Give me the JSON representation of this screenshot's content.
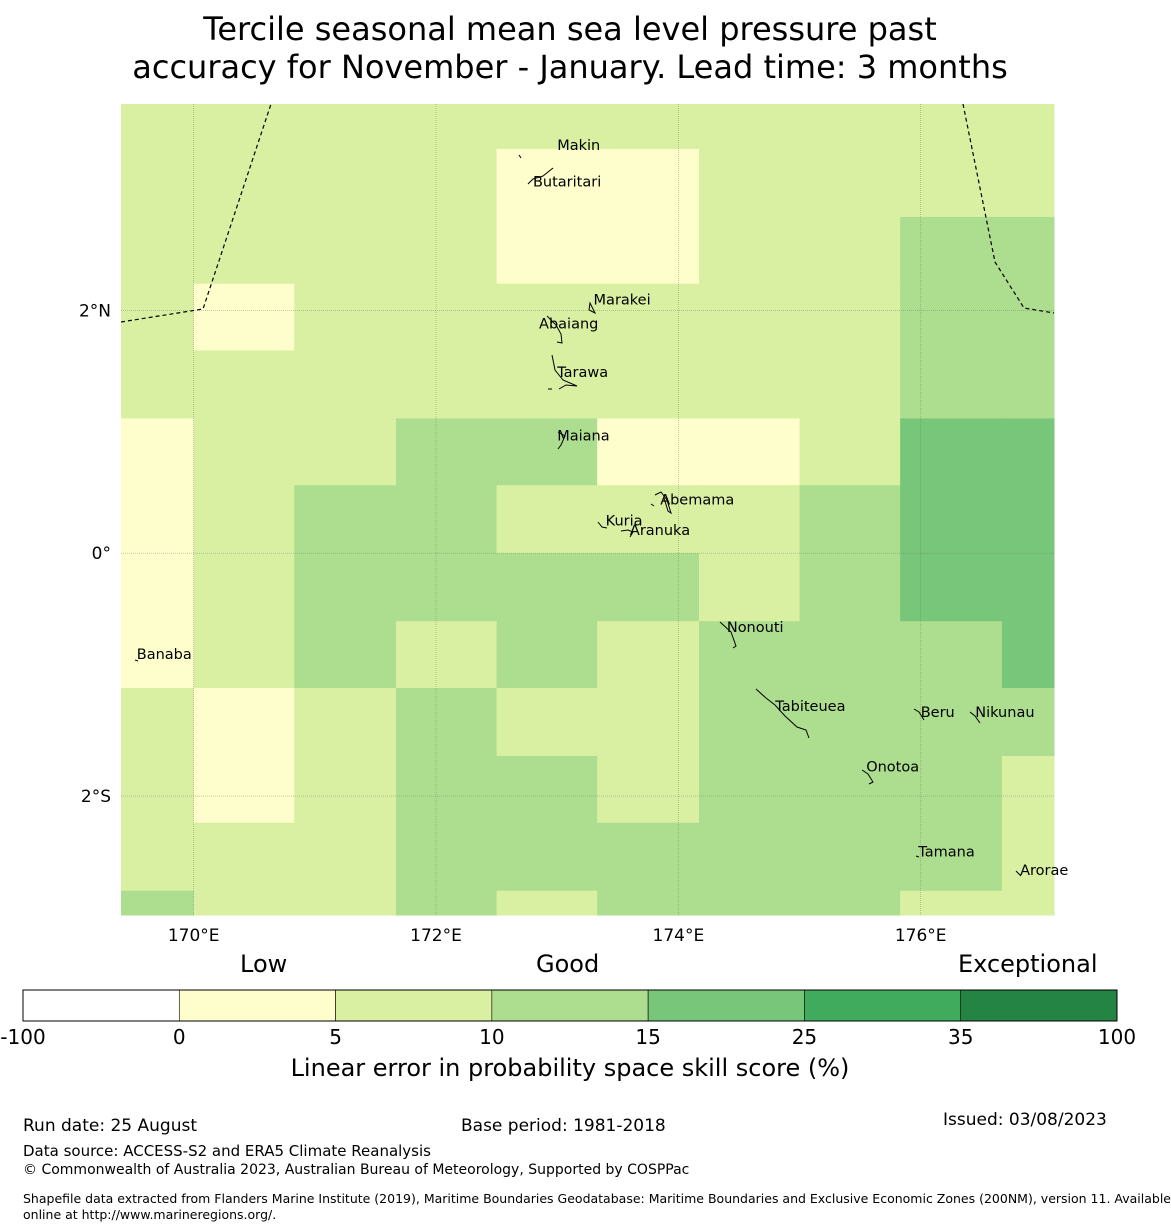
{
  "title": {
    "line1": "Tercile seasonal mean sea level pressure past",
    "line2": "accuracy for November - January. Lead time: 3 months"
  },
  "map": {
    "x_ticks": [
      "170°E",
      "172°E",
      "174°E",
      "176°E"
    ],
    "y_ticks": [
      "2°N",
      "0°",
      "2°S"
    ],
    "x_tick_values": [
      170,
      172,
      174,
      176
    ],
    "y_tick_values": [
      2,
      0,
      -2
    ],
    "extent": {
      "lon": [
        169.4,
        177.1
      ],
      "lat": [
        -2.98,
        3.7
      ]
    },
    "places": [
      {
        "name": "Makin",
        "lon": 173.0,
        "lat": 3.32
      },
      {
        "name": "Butaritari",
        "lon": 172.8,
        "lat": 3.02
      },
      {
        "name": "Marakei",
        "lon": 173.3,
        "lat": 2.05
      },
      {
        "name": "Abaiang",
        "lon": 172.85,
        "lat": 1.85
      },
      {
        "name": "Tarawa",
        "lon": 173.0,
        "lat": 1.45
      },
      {
        "name": "Maiana",
        "lon": 173.0,
        "lat": 0.93
      },
      {
        "name": "Abemama",
        "lon": 173.85,
        "lat": 0.4
      },
      {
        "name": "Kuria",
        "lon": 173.4,
        "lat": 0.23
      },
      {
        "name": "Aranuka",
        "lon": 173.6,
        "lat": 0.15
      },
      {
        "name": "Nonouti",
        "lon": 174.4,
        "lat": -0.65
      },
      {
        "name": "Banaba",
        "lon": 169.53,
        "lat": -0.87
      },
      {
        "name": "Beru",
        "lon": 176.0,
        "lat": -1.35
      },
      {
        "name": "Nikunau",
        "lon": 176.45,
        "lat": -1.35
      },
      {
        "name": "Tabiteuea",
        "lon": 174.8,
        "lat": -1.3
      },
      {
        "name": "Onotoa",
        "lon": 175.55,
        "lat": -1.8
      },
      {
        "name": "Tamana",
        "lon": 175.98,
        "lat": -2.5
      },
      {
        "name": "Arorae",
        "lon": 176.82,
        "lat": -2.65
      }
    ],
    "grid_lon_edges": [
      169.4,
      170.0,
      170.83,
      171.67,
      172.5,
      173.33,
      174.17,
      175.0,
      175.83,
      176.67,
      177.1
    ],
    "grid_lat_edges": [
      3.7,
      3.33,
      2.77,
      2.22,
      1.67,
      1.11,
      0.56,
      0.0,
      -0.56,
      -1.11,
      -1.67,
      -2.22,
      -2.78,
      -2.98
    ],
    "skill_grid": [
      [
        2,
        2,
        2,
        2,
        2,
        2,
        2,
        2,
        2,
        2
      ],
      [
        2,
        2,
        2,
        2,
        1,
        1,
        2,
        2,
        2,
        2
      ],
      [
        2,
        2,
        2,
        2,
        1,
        1,
        2,
        2,
        3,
        3
      ],
      [
        2,
        1,
        2,
        2,
        2,
        2,
        2,
        2,
        3,
        3
      ],
      [
        2,
        2,
        2,
        2,
        2,
        2,
        2,
        2,
        3,
        3
      ],
      [
        1,
        2,
        2,
        3,
        3,
        1,
        1,
        2,
        4,
        4
      ],
      [
        1,
        2,
        3,
        3,
        2,
        2,
        2,
        3,
        4,
        4
      ],
      [
        1,
        2,
        3,
        3,
        3,
        3,
        2,
        3,
        4,
        4
      ],
      [
        1,
        2,
        3,
        2,
        3,
        2,
        3,
        3,
        3,
        4
      ],
      [
        2,
        1,
        2,
        3,
        2,
        2,
        3,
        3,
        3,
        3
      ],
      [
        2,
        1,
        2,
        3,
        3,
        2,
        3,
        3,
        3,
        2
      ],
      [
        2,
        2,
        2,
        3,
        3,
        3,
        3,
        3,
        3,
        2
      ],
      [
        3,
        2,
        2,
        3,
        2,
        3,
        3,
        3,
        2,
        2
      ]
    ]
  },
  "legend": {
    "categories": [
      "Low",
      "Good",
      "Exceptional"
    ],
    "boundaries": [
      "-100",
      "0",
      "5",
      "10",
      "15",
      "25",
      "35",
      "100"
    ],
    "colors": [
      "#ffffff",
      "#fefecc",
      "#d9f0a3",
      "#addd8e",
      "#78c679",
      "#41ab5d",
      "#238443"
    ],
    "label": "Linear error in probability space skill score (%)"
  },
  "footer": {
    "run_date": "Run date: 25 August",
    "base_period": "Base period: 1981-2018",
    "issued": "Issued: 03/08/2023",
    "data_source": "Data source: ACCESS-S2 and ERA5 Climate Reanalysis",
    "copyright": "© Commonwealth of Australia 2023, Australian Bureau of Meteorology, Supported by COSPPac",
    "shapefile_line1": "Shapefile data extracted from Flanders Marine Institute (2019), Maritime Boundaries Geodatabase: Maritime Boundaries and Exclusive Economic Zones (200NM), version 11. Available",
    "shapefile_line2": "online at http://www.marineregions.org/."
  }
}
